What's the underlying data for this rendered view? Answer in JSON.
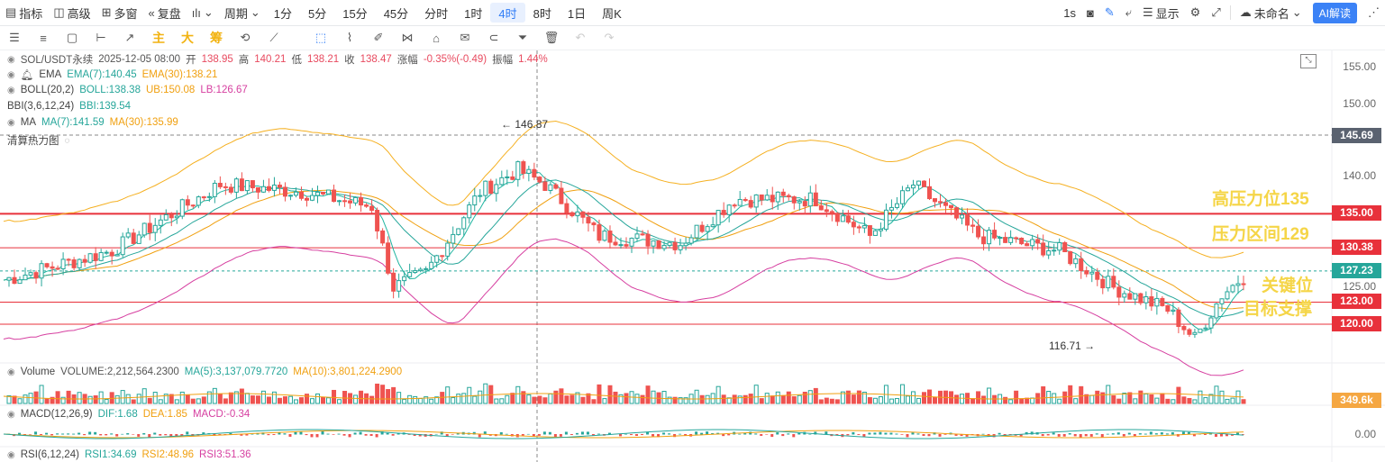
{
  "toolbar": {
    "indicators": "指标",
    "advanced": "高级",
    "multi_window": "多窗",
    "replay": "复盘",
    "period": "周期",
    "timeframes": [
      "1分",
      "5分",
      "15分",
      "45分",
      "分时",
      "1时",
      "4时",
      "8时",
      "1日",
      "周K"
    ],
    "active_timeframe": "4时",
    "refresh": "1s",
    "display": "显示",
    "layout_name": "未命名",
    "ai_button": "AI解读"
  },
  "drawing_tools": {
    "chinese_chars": [
      "主",
      "大",
      "筹"
    ]
  },
  "legends": {
    "symbol": "SOL/USDT永续",
    "datetime": "2025-12-05 08:00",
    "open_label": "开",
    "open": "138.95",
    "high_label": "高",
    "high": "140.21",
    "low_label": "低",
    "low": "138.21",
    "close_label": "收",
    "close": "138.47",
    "change_label": "涨幅",
    "change": "-0.35%(-0.49)",
    "amplitude_label": "振幅",
    "amplitude": "1.44%",
    "ema_name": "EMA",
    "ema7": "EMA(7):140.45",
    "ema30": "EMA(30):138.21",
    "boll_name": "BOLL(20,2)",
    "boll": "BOLL:138.38",
    "boll_ub": "UB:150.08",
    "boll_lb": "LB:126.67",
    "bbi_name": "BBI(3,6,12,24)",
    "bbi": "BBI:139.54",
    "ma_name": "MA",
    "ma7": "MA(7):141.59",
    "ma30": "MA(30):135.99",
    "heatmap": "清算热力图",
    "volume_name": "Volume",
    "volume": "VOLUME:2,212,564.2300",
    "vol_ma5": "MA(5):3,137,079.7720",
    "vol_ma10": "MA(10):3,801,224.2900",
    "macd_name": "MACD(12,26,9)",
    "macd_dif": "DIF:1.68",
    "macd_dea": "DEA:1.85",
    "macd_val": "MACD:-0.34",
    "rsi_name": "RSI(6,12,24)",
    "rsi1": "RSI1:34.69",
    "rsi2": "RSI2:48.96",
    "rsi3": "RSI3:51.36"
  },
  "price_axis": {
    "ticks": [
      "155.00",
      "150.00",
      "140.00",
      "125.00"
    ],
    "tags": [
      {
        "label": "145.69",
        "color": "#5a6270"
      },
      {
        "label": "135.00",
        "color": "#e8313b"
      },
      {
        "label": "130.38",
        "color": "#e8313b"
      },
      {
        "label": "127.23",
        "color": "#26a69a"
      },
      {
        "label": "123.00",
        "color": "#e8313b"
      },
      {
        "label": "120.00",
        "color": "#e8313b"
      }
    ],
    "volume_tag": "349.6k",
    "macd_zero": "0.00"
  },
  "annotations": {
    "high_resist": "高压力位135",
    "resist_zone": "压力区间129",
    "key_level": "关键位",
    "target_support": "目标支撑",
    "peak_label": "146.87",
    "trough_label": "116.71"
  },
  "colors": {
    "up": "#26a69a",
    "down": "#ef5350",
    "level_line": "#e8313b",
    "annotation": "#f5d547",
    "accent": "#2f7cf6"
  }
}
